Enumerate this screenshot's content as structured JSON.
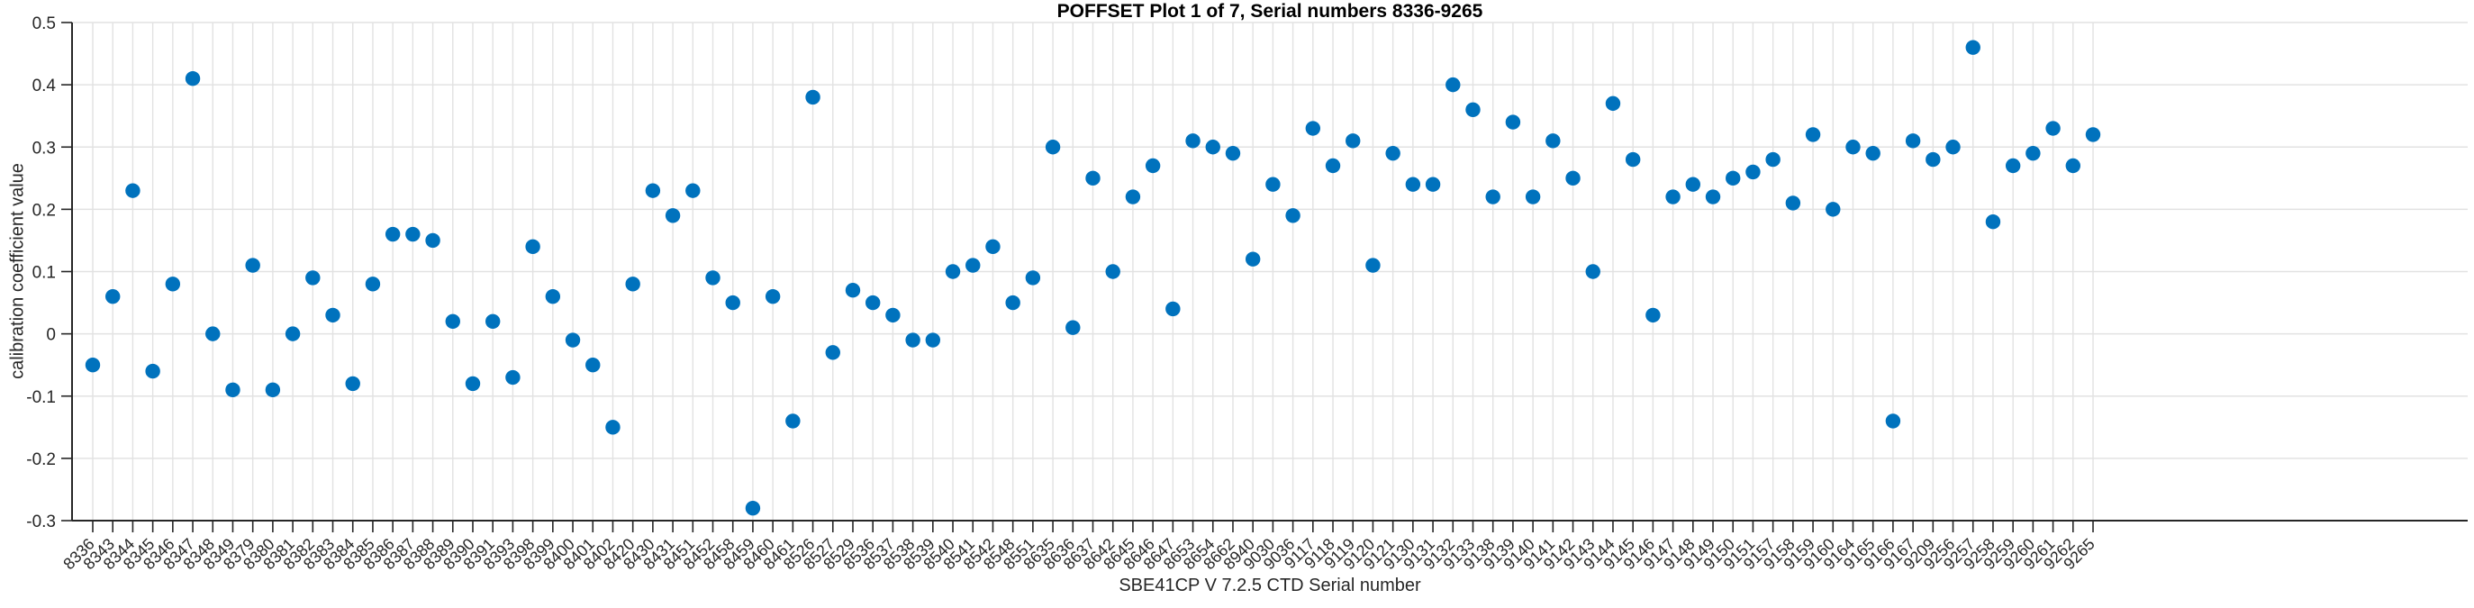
{
  "figure": {
    "background": "#ffffff"
  },
  "chart_data": {
    "type": "scatter",
    "title": "POFFSET Plot 1 of 7, Serial numbers 8336-9265",
    "xlabel": "SBE41CP V 7.2.5 CTD Serial number",
    "ylabel": "calibration coefficient value",
    "ylim": [
      -0.3,
      0.5
    ],
    "ytick_labels": [
      "0.5",
      "0.4",
      "0.3",
      "0.2",
      "0.1",
      "0",
      "-0.1",
      "-0.2",
      "-0.3"
    ],
    "grid": true,
    "legend": "none",
    "marker": "filled-circle",
    "categories": [
      "8336",
      "8343",
      "8344",
      "8345",
      "8346",
      "8347",
      "8348",
      "8349",
      "8379",
      "8380",
      "8381",
      "8382",
      "8383",
      "8384",
      "8385",
      "8386",
      "8387",
      "8388",
      "8389",
      "8390",
      "8391",
      "8393",
      "8398",
      "8399",
      "8400",
      "8401",
      "8402",
      "8420",
      "8430",
      "8431",
      "8451",
      "8452",
      "8458",
      "8459",
      "8460",
      "8461",
      "8526",
      "8527",
      "8529",
      "8536",
      "8537",
      "8538",
      "8539",
      "8540",
      "8541",
      "8542",
      "8548",
      "8551",
      "8635",
      "8636",
      "8637",
      "8642",
      "8645",
      "8646",
      "8647",
      "8653",
      "8654",
      "8662",
      "8940",
      "9030",
      "9036",
      "9117",
      "9118",
      "9119",
      "9120",
      "9121",
      "9130",
      "9131",
      "9132",
      "9133",
      "9138",
      "9139",
      "9140",
      "9141",
      "9142",
      "9143",
      "9144",
      "9145",
      "9146",
      "9147",
      "9148",
      "9149",
      "9150",
      "9151",
      "9157",
      "9158",
      "9159",
      "9160",
      "9164",
      "9165",
      "9166",
      "9167",
      "9209",
      "9256",
      "9257",
      "9258",
      "9259",
      "9260",
      "9261",
      "9262",
      "9265"
    ],
    "values": [
      -0.05,
      0.06,
      0.23,
      -0.06,
      0.08,
      0.41,
      0.0,
      -0.09,
      0.11,
      -0.09,
      0.0,
      0.09,
      0.03,
      -0.08,
      0.08,
      0.16,
      0.16,
      0.15,
      0.02,
      -0.08,
      0.02,
      -0.07,
      0.14,
      0.06,
      -0.01,
      -0.05,
      -0.15,
      0.08,
      0.23,
      0.19,
      0.23,
      0.09,
      0.05,
      -0.28,
      0.06,
      -0.14,
      0.38,
      -0.03,
      0.07,
      0.05,
      0.03,
      -0.01,
      -0.01,
      0.1,
      0.11,
      0.14,
      0.05,
      0.09,
      0.3,
      0.01,
      0.25,
      0.1,
      0.22,
      0.27,
      0.04,
      0.31,
      0.3,
      0.29,
      0.12,
      0.24,
      0.19,
      0.33,
      0.27,
      0.31,
      0.11,
      0.29,
      0.24,
      0.24,
      0.4,
      0.36,
      0.22,
      0.34,
      0.22,
      0.31,
      0.25,
      0.1,
      0.37,
      0.28,
      0.03,
      0.22,
      0.24,
      0.22,
      0.25,
      0.26,
      0.28,
      0.21,
      0.32,
      0.2,
      0.3,
      0.29,
      -0.14,
      0.31,
      0.28,
      0.3,
      0.46,
      0.18,
      0.27,
      0.29,
      0.33,
      0.27,
      0.32
    ],
    "colors": {
      "marker": "#0072BD",
      "grid": "#e2e2e2",
      "axis": "#262626",
      "tick_text": "#262626",
      "title_text": "#000000"
    }
  }
}
